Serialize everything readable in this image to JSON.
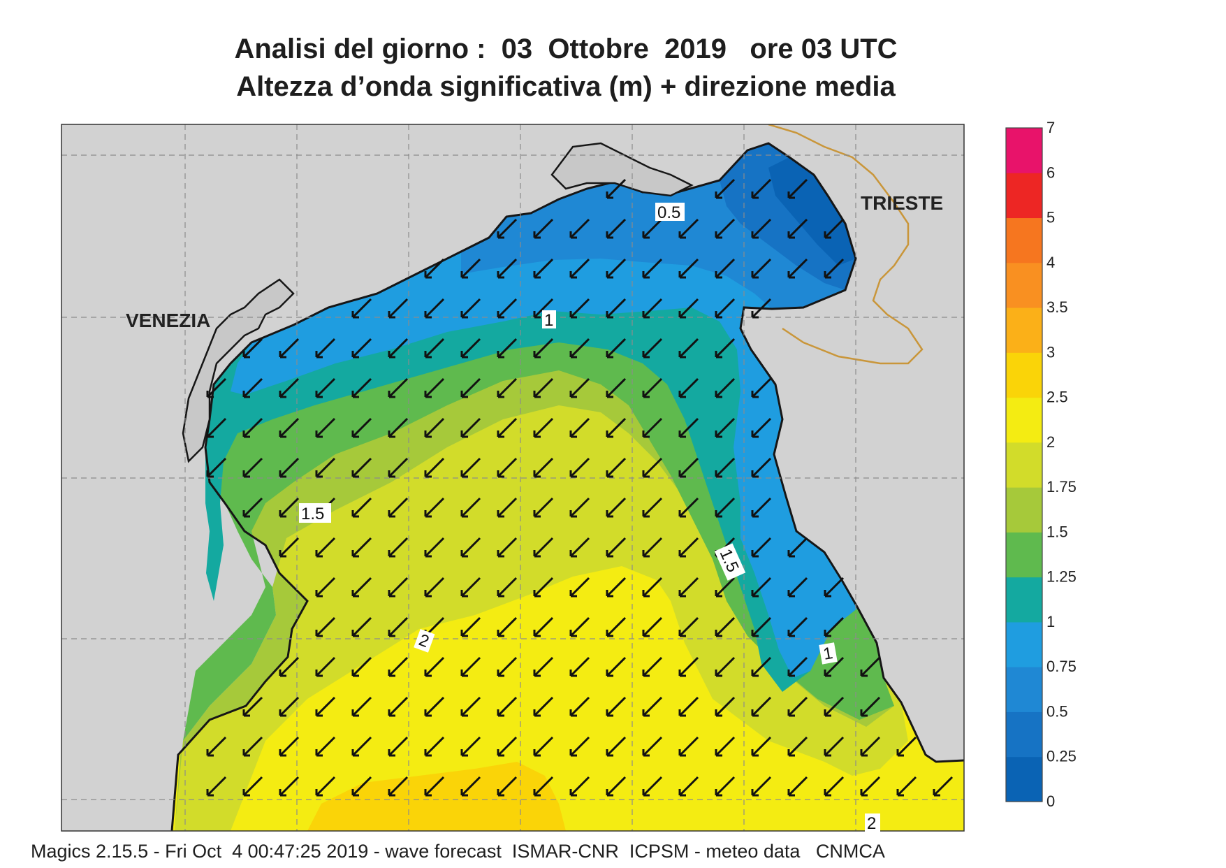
{
  "title_line1": "Analisi del giorno :  03  Ottobre  2019   ore 03 UTC",
  "title_line2": "Altezza d’onda significativa (m) + direzione media",
  "footer": "Magics 2.15.5 - Fri Oct  4 00:47:25 2019 - wave forecast  ISMAR-CNR  ICPSM - meteo data   CNMCA",
  "cities": {
    "venezia": "VENEZIA",
    "trieste": "TRIESTE"
  },
  "contour_labels": [
    "0.5",
    "1",
    "1.5",
    "1.5",
    "2",
    "1",
    "2"
  ],
  "legend": {
    "levels": [
      "0",
      "0.25",
      "0.5",
      "0.75",
      "1",
      "1.25",
      "1.5",
      "1.75",
      "2",
      "2.5",
      "3",
      "3.5",
      "4",
      "5",
      "6",
      "7"
    ],
    "colors": [
      "#0a63b4",
      "#1673c4",
      "#1f88d4",
      "#1f9de0",
      "#14a9a0",
      "#5fba4e",
      "#a6c93a",
      "#d2dc2a",
      "#f4ec12",
      "#fad408",
      "#fbb018",
      "#f99021",
      "#f6761f",
      "#ed2624",
      "#e8136a"
    ]
  },
  "wave_direction": "towards south-west",
  "colors": {
    "land": "#d2d2d2",
    "coast": "#161616",
    "border": "#c9963a",
    "grid": "#8c8c8c"
  }
}
